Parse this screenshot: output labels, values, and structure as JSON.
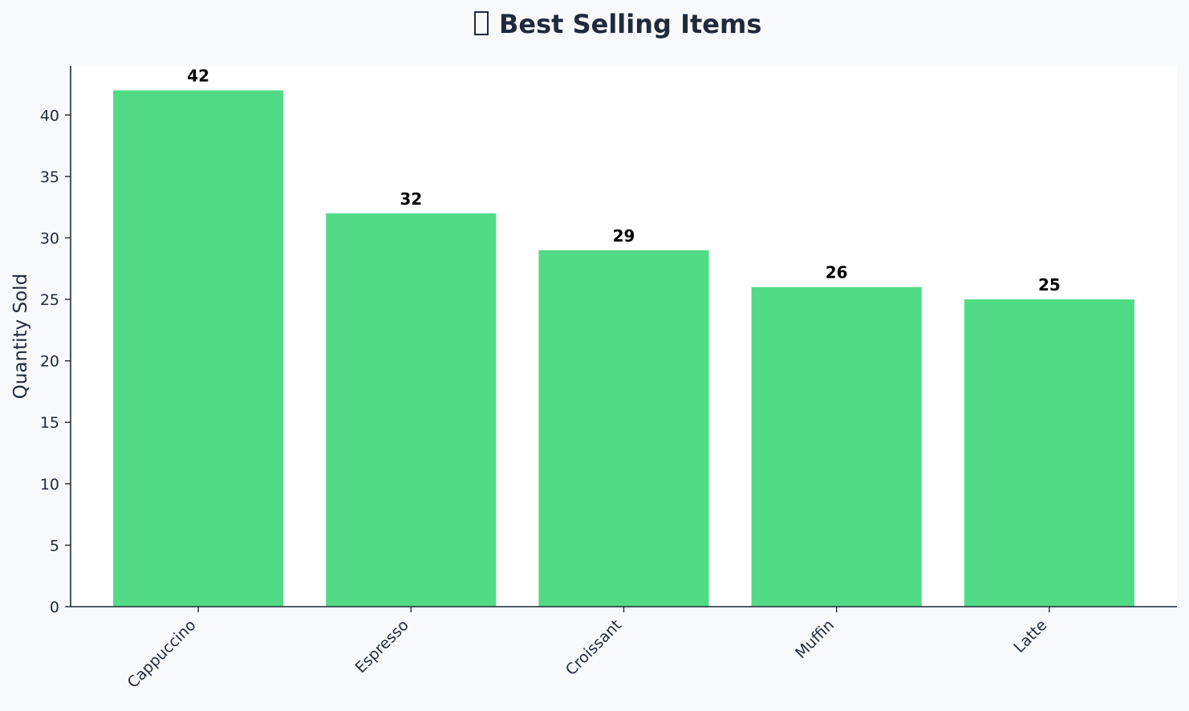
{
  "chart_data": {
    "type": "bar",
    "title_icon": "trophy-icon",
    "title": "Best Selling Items",
    "xlabel": "",
    "ylabel": "Quantity Sold",
    "categories": [
      "Cappuccino",
      "Espresso",
      "Croissant",
      "Muffin",
      "Latte"
    ],
    "values": [
      42,
      32,
      29,
      26,
      25
    ],
    "value_labels": [
      "42",
      "32",
      "29",
      "26",
      "25"
    ],
    "ylim": [
      0,
      44
    ],
    "yticks": [
      0,
      5,
      10,
      15,
      20,
      25,
      30,
      35,
      40
    ],
    "ytick_labels": [
      "0",
      "5",
      "10",
      "15",
      "20",
      "25",
      "30",
      "35",
      "40"
    ],
    "grid": false,
    "legend": "none",
    "colors": {
      "bar": "#52db86",
      "page_background": "#f7f9fb",
      "plot_background": "#ffffff",
      "axis": "#1f2a3c",
      "text": "#1f2a3c"
    }
  }
}
